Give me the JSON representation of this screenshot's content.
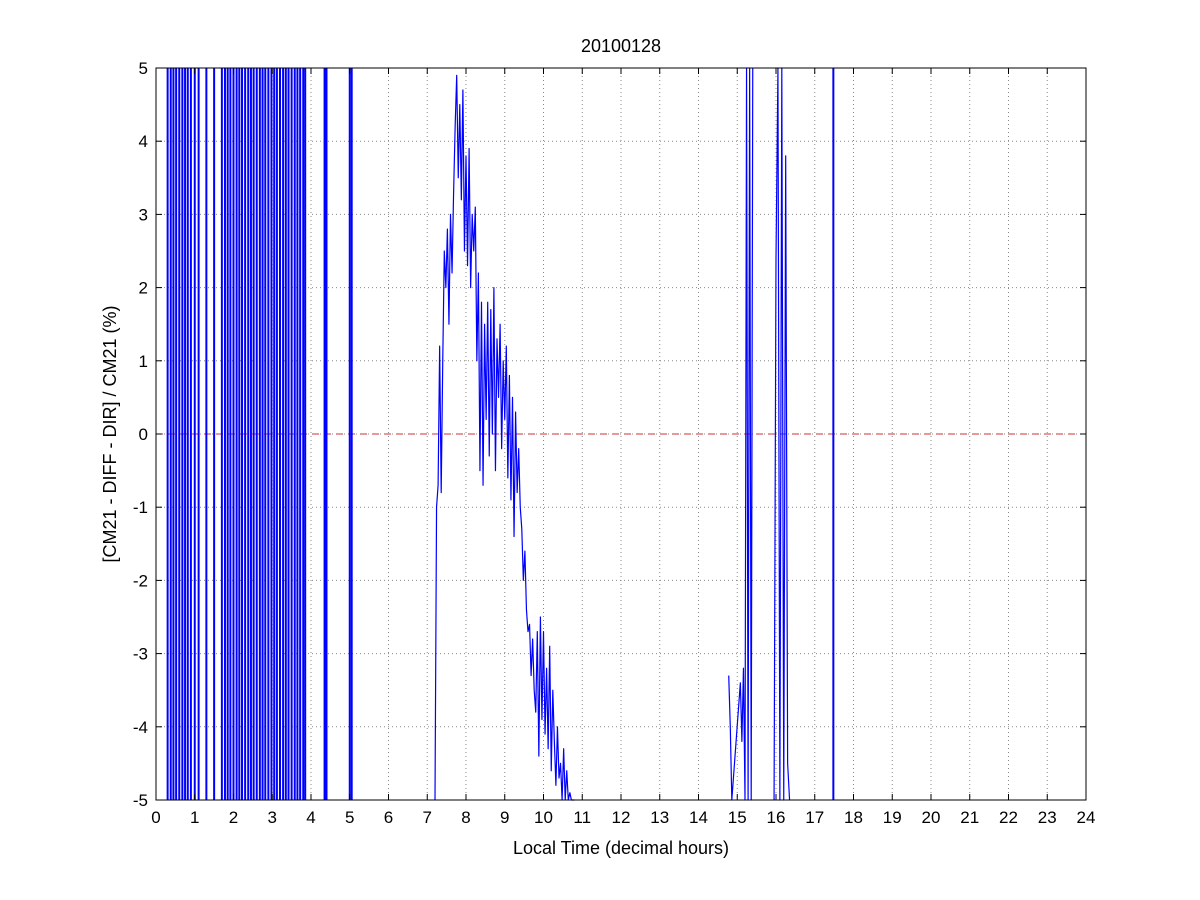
{
  "chart_data": {
    "type": "line",
    "title": "20100128",
    "xlabel": "Local Time (decimal hours)",
    "ylabel": "[CM21 - DIFF - DIR] / CM21 (%)",
    "xlim": [
      0,
      24
    ],
    "ylim": [
      -5,
      5
    ],
    "xticks": [
      0,
      1,
      2,
      3,
      4,
      5,
      6,
      7,
      8,
      9,
      10,
      11,
      12,
      13,
      14,
      15,
      16,
      17,
      18,
      19,
      20,
      21,
      22,
      23,
      24
    ],
    "yticks": [
      -5,
      -4,
      -3,
      -2,
      -1,
      0,
      1,
      2,
      3,
      4,
      5
    ],
    "grid": true,
    "colors": {
      "series": "#0000ff",
      "reference": "#cc3333",
      "grid": "#888888"
    },
    "reference_line": {
      "y": 0,
      "style": "dashed"
    },
    "series": [
      {
        "x": [
          7.2,
          7.24,
          7.28,
          7.32,
          7.36,
          7.4,
          7.44,
          7.48,
          7.52,
          7.56,
          7.6,
          7.64,
          7.68,
          7.72,
          7.76,
          7.8,
          7.84,
          7.88,
          7.92,
          7.96,
          8.0,
          8.04,
          8.08,
          8.12,
          8.16,
          8.2,
          8.24,
          8.28,
          8.32,
          8.36,
          8.4,
          8.44,
          8.48,
          8.52,
          8.56,
          8.6,
          8.64,
          8.68,
          8.72,
          8.76,
          8.8,
          8.84,
          8.88,
          8.92,
          8.96,
          9.0,
          9.04,
          9.08,
          9.12,
          9.16,
          9.2,
          9.24,
          9.28,
          9.32,
          9.36,
          9.4,
          9.44,
          9.48,
          9.52,
          9.56,
          9.6,
          9.64,
          9.68,
          9.72,
          9.76,
          9.8,
          9.84,
          9.88,
          9.92,
          9.96,
          10.0,
          10.04,
          10.08,
          10.12,
          10.16,
          10.2,
          10.24,
          10.28,
          10.32,
          10.36,
          10.4,
          10.44,
          10.48,
          10.52,
          10.56,
          10.6,
          10.64,
          10.68,
          10.72,
          10.76,
          10.8
        ],
        "y": [
          -5.0,
          -1.0,
          -0.7,
          1.2,
          -0.8,
          1.0,
          2.5,
          2.0,
          2.8,
          1.5,
          3.0,
          2.2,
          3.3,
          4.2,
          4.9,
          3.5,
          4.5,
          3.2,
          4.7,
          2.5,
          3.8,
          2.3,
          3.9,
          2.0,
          3.0,
          2.5,
          3.1,
          1.0,
          2.2,
          -0.5,
          1.8,
          -0.7,
          1.5,
          0.2,
          1.8,
          -0.3,
          1.7,
          0.0,
          2.0,
          -0.5,
          1.3,
          0.5,
          1.5,
          -0.2,
          1.0,
          0.2,
          1.2,
          -0.6,
          0.8,
          -0.9,
          0.5,
          -1.4,
          0.3,
          -0.8,
          -0.2,
          -1.0,
          -1.3,
          -2.0,
          -1.6,
          -2.4,
          -2.7,
          -2.6,
          -3.3,
          -2.8,
          -3.5,
          -3.8,
          -2.7,
          -4.4,
          -2.5,
          -3.9,
          -2.7,
          -4.1,
          -3.2,
          -4.3,
          -2.9,
          -4.6,
          -3.5,
          -4.2,
          -4.8,
          -4.0,
          -4.7,
          -4.5,
          -5.0,
          -4.3,
          -5.0,
          -4.6,
          -5.0,
          -4.9,
          -5.0,
          -5.0,
          -5.0
        ]
      },
      {
        "x": [
          14.78,
          14.82,
          14.86,
          15.08,
          15.12,
          15.16,
          15.2,
          15.24,
          15.28,
          15.32,
          15.36,
          15.4
        ],
        "y": [
          -3.3,
          -4.0,
          -5.0,
          -3.4,
          -4.2,
          -3.2,
          -5.0,
          5.0,
          -5.0,
          5.0,
          -5.0,
          5.0
        ]
      },
      {
        "x": [
          15.95,
          16.0,
          16.05,
          16.1,
          16.15,
          16.2,
          16.25,
          16.3,
          16.35
        ],
        "y": [
          -5.0,
          2.4,
          5.0,
          -5.0,
          5.0,
          -5.0,
          3.8,
          -4.5,
          -5.0
        ]
      }
    ],
    "spikes_full_range": [
      0.3,
      0.38,
      0.45,
      0.52,
      0.6,
      0.68,
      0.75,
      0.82,
      0.9,
      1.0,
      1.1,
      1.3,
      1.5,
      1.7,
      1.78,
      1.85,
      1.92,
      2.0,
      2.08,
      2.15,
      2.22,
      2.3,
      2.38,
      2.45,
      2.52,
      2.6,
      2.68,
      2.75,
      2.82,
      2.9,
      2.98,
      3.05,
      3.12,
      3.2,
      3.28,
      3.35,
      3.42,
      3.5,
      3.58,
      3.65,
      3.72,
      3.8,
      3.85,
      4.35,
      4.4,
      5.0,
      5.05,
      17.48
    ]
  }
}
